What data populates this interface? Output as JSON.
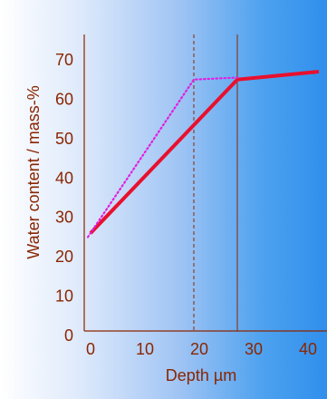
{
  "chart_data": {
    "type": "line",
    "xlabel": "Depth µm",
    "ylabel": "Water content / mass-%",
    "xlim": [
      0,
      40
    ],
    "ylim": [
      0,
      70
    ],
    "x_ticks": [
      "0",
      "10",
      "20",
      "30",
      "40"
    ],
    "y_ticks": [
      "0",
      "10",
      "20",
      "30",
      "40",
      "50",
      "60",
      "70"
    ],
    "grid": false,
    "legend": "none",
    "series": [
      {
        "color": "#e8102e",
        "style": "solid",
        "points": [
          [
            0,
            26
          ],
          [
            27,
            65
          ],
          [
            42,
            67
          ]
        ]
      },
      {
        "color": "#e020e0",
        "style": "dotted",
        "points": [
          [
            -0.5,
            25
          ],
          [
            19,
            65
          ],
          [
            27,
            65.5
          ]
        ]
      }
    ],
    "reference_lines": [
      {
        "x": 19,
        "color": "#8b2500",
        "style": "dashed"
      },
      {
        "x": 27,
        "color": "#8b2500",
        "style": "solid"
      }
    ]
  }
}
